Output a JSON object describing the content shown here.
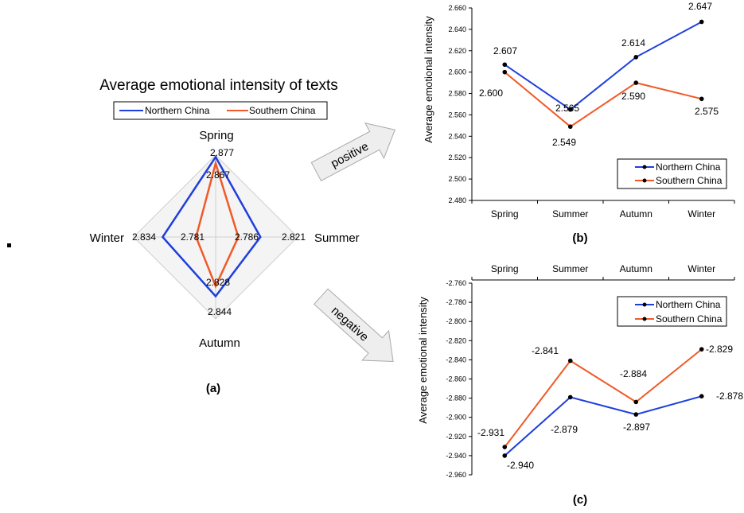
{
  "colors": {
    "north": "#1f3fdc",
    "south": "#f05a28",
    "grid": "#cfcfcf",
    "arrow_fill": "#eeeeee",
    "arrow_stroke": "#aaaaaa"
  },
  "arrows": {
    "positive": "positive",
    "negative": "negative"
  },
  "chart_data": [
    {
      "type": "radar",
      "panel_label": "(a)",
      "title": "Average emotional intensity of texts",
      "categories": [
        "Spring",
        "Summer",
        "Autumn",
        "Winter"
      ],
      "series": [
        {
          "name": "Northern China",
          "values": [
            2.877,
            2.821,
            2.844,
            2.834
          ],
          "labels": [
            "2.877",
            "2.821",
            "2.844",
            "2.834"
          ]
        },
        {
          "name": "Southern China",
          "values": [
            2.867,
            2.786,
            2.828,
            2.781
          ],
          "labels": [
            "2.867",
            "2.786",
            "2.828",
            "2.781"
          ]
        }
      ],
      "legend": "top"
    },
    {
      "type": "line",
      "panel_label": "(b)",
      "ylabel": "Average emotional intensity",
      "categories": [
        "Spring",
        "Summer",
        "Autumn",
        "Winter"
      ],
      "ylim": [
        2.48,
        2.66
      ],
      "yticks": [
        "2.480",
        "2.500",
        "2.520",
        "2.540",
        "2.560",
        "2.580",
        "2.600",
        "2.620",
        "2.640",
        "2.660"
      ],
      "series": [
        {
          "name": "Northern China",
          "values": [
            2.607,
            2.565,
            2.614,
            2.647
          ],
          "labels": [
            "2.607",
            "2.565",
            "2.614",
            "2.647"
          ]
        },
        {
          "name": "Southern China",
          "values": [
            2.6,
            2.549,
            2.59,
            2.575
          ],
          "labels": [
            "2.600",
            "2.549",
            "2.590",
            "2.575"
          ]
        }
      ],
      "legend": "bottom-right"
    },
    {
      "type": "line",
      "panel_label": "(c)",
      "ylabel": "Average emotional intensity",
      "categories": [
        "Spring",
        "Summer",
        "Autumn",
        "Winter"
      ],
      "ylim": [
        -2.96,
        -2.76
      ],
      "yticks": [
        "-2.760",
        "-2.780",
        "-2.800",
        "-2.820",
        "-2.840",
        "-2.860",
        "-2.880",
        "-2.900",
        "-2.920",
        "-2.940",
        "-2.960"
      ],
      "series": [
        {
          "name": "Northern China",
          "values": [
            -2.94,
            -2.879,
            -2.897,
            -2.878
          ],
          "labels": [
            "-2.940",
            "-2.879",
            "-2.897",
            "-2.878"
          ]
        },
        {
          "name": "Southern China",
          "values": [
            -2.931,
            -2.841,
            -2.884,
            -2.829
          ],
          "labels": [
            "-2.931",
            "-2.841",
            "-2.884",
            "-2.829"
          ]
        }
      ],
      "legend": "top-right"
    }
  ]
}
